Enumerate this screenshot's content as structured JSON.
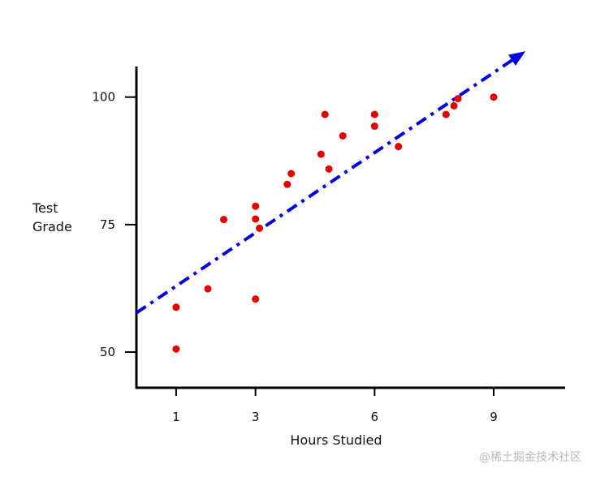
{
  "chart_data": {
    "type": "scatter",
    "title": "",
    "xlabel": "Hours Studied",
    "ylabel_lines": [
      "Test",
      "Grade"
    ],
    "x_ticks": [
      1,
      3,
      6,
      9
    ],
    "y_ticks": [
      50,
      75,
      100
    ],
    "xlim": [
      0,
      10.8
    ],
    "ylim": [
      43,
      106
    ],
    "grid": false,
    "legend": "none",
    "series": [
      {
        "color": "#e60000",
        "points": [
          {
            "x": 1.0,
            "y": 50.6
          },
          {
            "x": 1.0,
            "y": 58.8
          },
          {
            "x": 1.8,
            "y": 62.4
          },
          {
            "x": 2.2,
            "y": 76.0
          },
          {
            "x": 3.0,
            "y": 60.4
          },
          {
            "x": 3.0,
            "y": 78.6
          },
          {
            "x": 3.0,
            "y": 76.1
          },
          {
            "x": 3.1,
            "y": 74.3
          },
          {
            "x": 3.8,
            "y": 82.9
          },
          {
            "x": 3.9,
            "y": 85.0
          },
          {
            "x": 4.65,
            "y": 88.8
          },
          {
            "x": 4.75,
            "y": 96.6
          },
          {
            "x": 4.85,
            "y": 85.9
          },
          {
            "x": 5.2,
            "y": 92.4
          },
          {
            "x": 6.0,
            "y": 96.6
          },
          {
            "x": 6.0,
            "y": 94.3
          },
          {
            "x": 6.6,
            "y": 90.3
          },
          {
            "x": 7.8,
            "y": 96.6
          },
          {
            "x": 8.0,
            "y": 98.3
          },
          {
            "x": 8.1,
            "y": 99.7
          },
          {
            "x": 9.0,
            "y": 100.0
          }
        ]
      }
    ],
    "trendline": {
      "color": "#0000e6",
      "style": "dash-dot",
      "arrow": true,
      "from": {
        "x": 0.0,
        "y": 57.7
      },
      "to": {
        "x": 9.8,
        "y": 109.0
      }
    }
  },
  "watermark": "@稀土掘金技术社区"
}
